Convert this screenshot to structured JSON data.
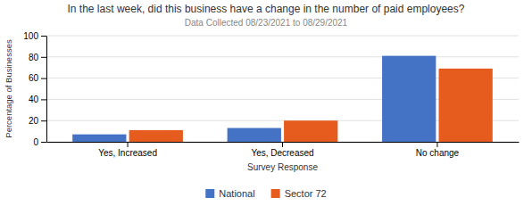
{
  "chart_data": {
    "type": "bar",
    "title": "In the last week, did this business have a change in the number of paid employees?",
    "subtitle": "Data Collected 08/23/2021 to 08/29/2021",
    "categories": [
      "Yes, Increased",
      "Yes, Decreased",
      "No change"
    ],
    "series": [
      {
        "name": "National",
        "color": "#4472C4",
        "values": [
          7,
          13,
          81
        ]
      },
      {
        "name": "Sector 72",
        "color": "#E55C1E",
        "values": [
          11,
          20,
          69
        ]
      }
    ],
    "xlabel": "Survey Response",
    "ylabel": "Percentage of Businesses",
    "ylim": [
      0,
      100
    ],
    "yticks": [
      0,
      20,
      40,
      60,
      80,
      100
    ],
    "grid": true,
    "legend": "bottom"
  }
}
